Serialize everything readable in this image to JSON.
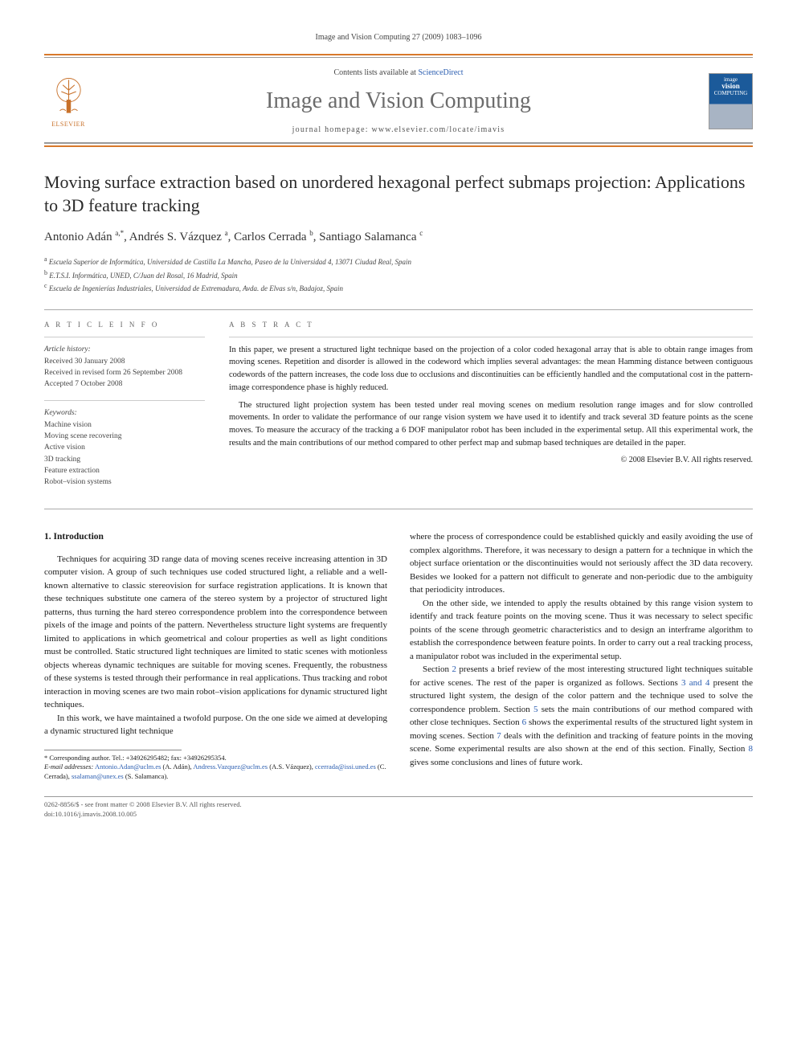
{
  "citation": "Image and Vision Computing 27 (2009) 1083–1096",
  "header": {
    "contents_prefix": "Contents lists available at ",
    "contents_link": "ScienceDirect",
    "journal_name": "Image and Vision Computing",
    "homepage_prefix": "journal homepage: ",
    "homepage_url": "www.elsevier.com/locate/imavis",
    "elsevier_label": "ELSEVIER",
    "cover_text1": "image",
    "cover_text2": "vision",
    "cover_text3": "COMPUTING"
  },
  "title": "Moving surface extraction based on unordered hexagonal perfect submaps projection: Applications to 3D feature tracking",
  "authors_html": "Antonio Adán <sup>a,*</sup>, Andrés S. Vázquez <sup>a</sup>, Carlos Cerrada <sup>b</sup>, Santiago Salamanca <sup>c</sup>",
  "affiliations": [
    {
      "sup": "a",
      "text": "Escuela Superior de Informática, Universidad de Castilla La Mancha, Paseo de la Universidad 4, 13071 Ciudad Real, Spain"
    },
    {
      "sup": "b",
      "text": "E.T.S.I. Informática, UNED, C/Juan del Rosal, 16 Madrid, Spain"
    },
    {
      "sup": "c",
      "text": "Escuela de Ingenierías Industriales, Universidad de Extremadura, Avda. de Elvas s/n, Badajoz, Spain"
    }
  ],
  "info": {
    "heading": "A R T I C L E   I N F O",
    "history_label": "Article history:",
    "history": [
      "Received 30 January 2008",
      "Received in revised form 26 September 2008",
      "Accepted 7 October 2008"
    ],
    "keywords_label": "Keywords:",
    "keywords": [
      "Machine vision",
      "Moving scene recovering",
      "Active vision",
      "3D tracking",
      "Feature extraction",
      "Robot–vision systems"
    ]
  },
  "abstract": {
    "heading": "A B S T R A C T",
    "p1": "In this paper, we present a structured light technique based on the projection of a color coded hexagonal array that is able to obtain range images from moving scenes. Repetition and disorder is allowed in the codeword which implies several advantages: the mean Hamming distance between contiguous codewords of the pattern increases, the code loss due to occlusions and discontinuities can be efficiently handled and the computational cost in the pattern-image correspondence phase is highly reduced.",
    "p2": "The structured light projection system has been tested under real moving scenes on medium resolution range images and for slow controlled movements. In order to validate the performance of our range vision system we have used it to identify and track several 3D feature points as the scene moves. To measure the accuracy of the tracking a 6 DOF manipulator robot has been included in the experimental setup. All this experimental work, the results and the main contributions of our method compared to other perfect map and submap based techniques are detailed in the paper.",
    "copyright": "© 2008 Elsevier B.V. All rights reserved."
  },
  "body": {
    "section_number": "1.",
    "section_title": "Introduction",
    "left_p1": "Techniques for acquiring 3D range data of moving scenes receive increasing attention in 3D computer vision. A group of such techniques use coded structured light, a reliable and a well-known alternative to classic stereovision for surface registration applications. It is known that these techniques substitute one camera of the stereo system by a projector of structured light patterns, thus turning the hard stereo correspondence problem into the correspondence between pixels of the image and points of the pattern. Nevertheless structure light systems are frequently limited to applications in which geometrical and colour properties as well as light conditions must be controlled. Static structured light techniques are limited to static scenes with motionless objects whereas dynamic techniques are suitable for moving scenes. Frequently, the robustness of these systems is tested through their performance in real applications. Thus tracking and robot interaction in moving scenes are two main robot–vision applications for dynamic structured light techniques.",
    "left_p2": "In this work, we have maintained a twofold purpose. On the one side we aimed at developing a dynamic structured light technique",
    "right_p1": "where the process of correspondence could be established quickly and easily avoiding the use of complex algorithms. Therefore, it was necessary to design a pattern for a technique in which the object surface orientation or the discontinuities would not seriously affect the 3D data recovery. Besides we looked for a pattern not difficult to generate and non-periodic due to the ambiguity that periodicity introduces.",
    "right_p2": "On the other side, we intended to apply the results obtained by this range vision system to identify and track feature points on the moving scene. Thus it was necessary to select specific points of the scene through geometric characteristics and to design an interframe algorithm to establish the correspondence between feature points. In order to carry out a real tracking process, a manipulator robot was included in the experimental setup.",
    "right_p3_a": "Section ",
    "right_p3_s2": "2",
    "right_p3_b": " presents a brief review of the most interesting structured light techniques suitable for active scenes. The rest of the paper is organized as follows. Sections ",
    "right_p3_s34": "3 and 4",
    "right_p3_c": " present the structured light system, the design of the color pattern and the technique used to solve the correspondence problem. Section ",
    "right_p3_s5": "5",
    "right_p3_d": " sets the main contributions of our method compared with other close techniques. Section ",
    "right_p3_s6": "6",
    "right_p3_e": " shows the experimental results of the structured light system in moving scenes. Section ",
    "right_p3_s7": "7",
    "right_p3_f": " deals with the definition and tracking of feature points in the moving scene. Some experimental results are also shown at the end of this section. Finally, Section ",
    "right_p3_s8": "8",
    "right_p3_g": " gives some conclusions and lines of future work."
  },
  "footnote": {
    "corr": "* Corresponding author. Tel.: +34926295482; fax: +34926295354.",
    "email_label": "E-mail addresses:",
    "e1": "Antonio.Adan@uclm.es",
    "n1": "(A. Adán),",
    "e2": "Andress.Vazquez@uclm.es",
    "n2": "(A.S. Vázquez),",
    "e3": "ccerrada@issi.uned.es",
    "n3": "(C. Cerrada),",
    "e4": "ssalaman@unex.es",
    "n4": "(S. Salamanca)."
  },
  "bottom": {
    "line1": "0262-8856/$ - see front matter © 2008 Elsevier B.V. All rights reserved.",
    "line2": "doi:10.1016/j.imavis.2008.10.005"
  },
  "colors": {
    "orange_rule": "#d8792b",
    "link": "#2a5db0",
    "grey_text": "#6b6b6b"
  }
}
